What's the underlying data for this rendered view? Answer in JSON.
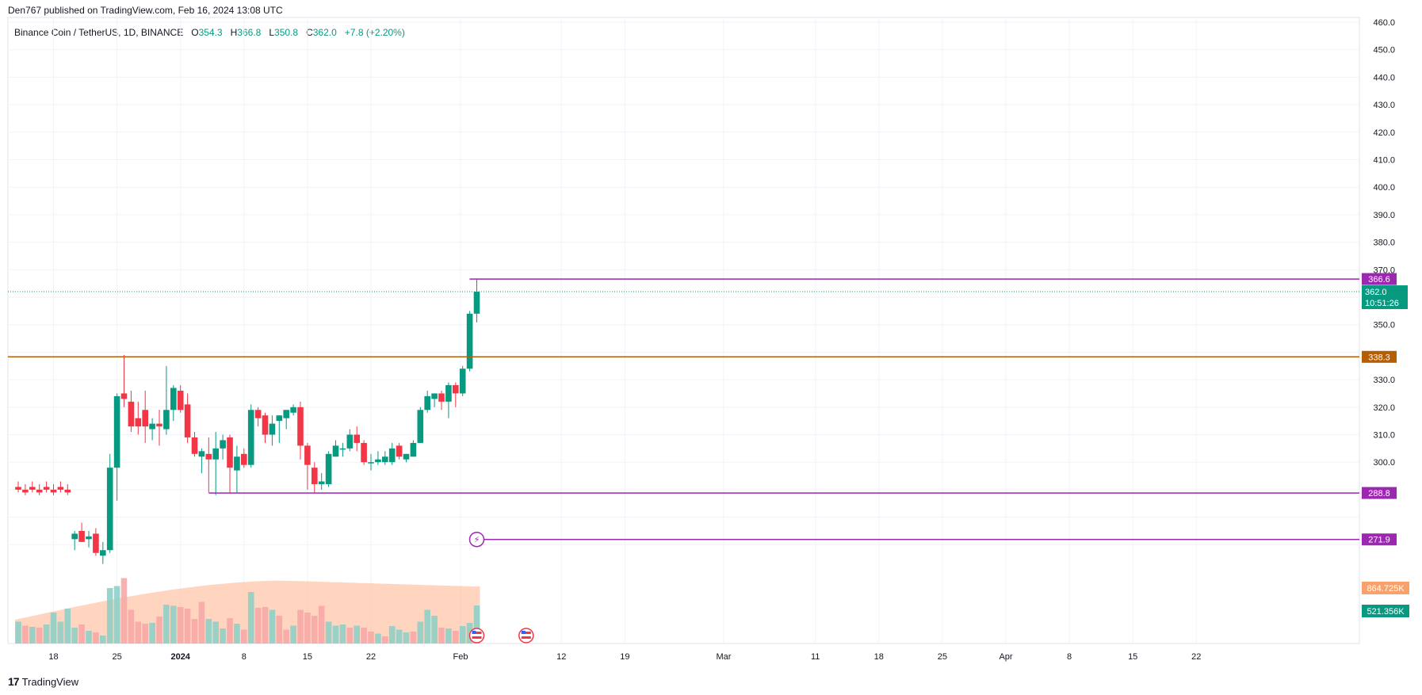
{
  "header": {
    "published": "Den767 published on TradingView.com, Feb 16, 2024 13:08 UTC"
  },
  "legend": {
    "symbol": "Binance Coin / TetherUS, 1D, BINANCE",
    "o_label": "O",
    "o_value": "354.3",
    "h_label": "H",
    "h_value": "366.8",
    "l_label": "L",
    "l_value": "350.8",
    "c_label": "C",
    "c_value": "362.0",
    "change": "+7.8 (+2.20%)"
  },
  "footer": {
    "brand": "TradingView",
    "logo_glyph": "17"
  },
  "colors": {
    "up": "#089981",
    "down": "#f23645",
    "vol_up": "#8fcfc7",
    "vol_down": "#f7a9a7",
    "vol_profile": "#ffb38a",
    "resistance": "#b45f06",
    "purple": "#9c27b0",
    "price_line": "#089981"
  },
  "chart_data": {
    "type": "candlestick",
    "title": "Binance Coin / TetherUS, 1D, BINANCE",
    "x_ticks": [
      "18",
      "25",
      "2024",
      "8",
      "15",
      "22",
      "Feb",
      "12",
      "19",
      "Mar",
      "11",
      "18",
      "25",
      "Apr",
      "8",
      "15",
      "22"
    ],
    "y_ticks": [
      "460.0",
      "450.0",
      "440.0",
      "430.0",
      "420.0",
      "410.0",
      "400.0",
      "390.0",
      "380.0",
      "370.0",
      "350.0",
      "330.0",
      "320.0",
      "310.0",
      "300.0"
    ],
    "ylim": [
      257,
      461
    ],
    "candles": [
      {
        "o": 291,
        "h": 293,
        "l": 289,
        "c": 290
      },
      {
        "o": 290,
        "h": 292,
        "l": 288,
        "c": 289
      },
      {
        "o": 291,
        "h": 293,
        "l": 289,
        "c": 290
      },
      {
        "o": 290,
        "h": 292,
        "l": 288,
        "c": 289
      },
      {
        "o": 291,
        "h": 293,
        "l": 289,
        "c": 290
      },
      {
        "o": 290,
        "h": 292,
        "l": 288,
        "c": 289
      },
      {
        "o": 291,
        "h": 293,
        "l": 289,
        "c": 290
      },
      {
        "o": 290,
        "h": 292,
        "l": 288,
        "c": 289
      },
      {
        "o": 272,
        "h": 275,
        "l": 268,
        "c": 274
      },
      {
        "o": 275,
        "h": 278,
        "l": 271,
        "c": 271
      },
      {
        "o": 272,
        "h": 275,
        "l": 269,
        "c": 273
      },
      {
        "o": 274,
        "h": 276,
        "l": 266,
        "c": 267
      },
      {
        "o": 266,
        "h": 271,
        "l": 263,
        "c": 268
      },
      {
        "o": 268,
        "h": 303,
        "l": 267,
        "c": 298
      },
      {
        "o": 298,
        "h": 325,
        "l": 286,
        "c": 324
      },
      {
        "o": 325,
        "h": 339,
        "l": 320,
        "c": 323
      },
      {
        "o": 322,
        "h": 326,
        "l": 311,
        "c": 313
      },
      {
        "o": 316,
        "h": 322,
        "l": 310,
        "c": 313
      },
      {
        "o": 319,
        "h": 326,
        "l": 307,
        "c": 313
      },
      {
        "o": 312,
        "h": 316,
        "l": 308,
        "c": 314
      },
      {
        "o": 314,
        "h": 319,
        "l": 306,
        "c": 313
      },
      {
        "o": 312,
        "h": 335,
        "l": 310,
        "c": 319
      },
      {
        "o": 319,
        "h": 328,
        "l": 315,
        "c": 327
      },
      {
        "o": 326,
        "h": 328,
        "l": 318,
        "c": 319
      },
      {
        "o": 321,
        "h": 325,
        "l": 307,
        "c": 309
      },
      {
        "o": 309,
        "h": 311,
        "l": 302,
        "c": 303
      },
      {
        "o": 302,
        "h": 305,
        "l": 296,
        "c": 304
      },
      {
        "o": 303,
        "h": 309,
        "l": 289,
        "c": 301
      },
      {
        "o": 301,
        "h": 311,
        "l": 288,
        "c": 305
      },
      {
        "o": 305,
        "h": 310,
        "l": 301,
        "c": 308
      },
      {
        "o": 309,
        "h": 310,
        "l": 289,
        "c": 298
      },
      {
        "o": 297,
        "h": 306,
        "l": 289,
        "c": 302
      },
      {
        "o": 303,
        "h": 305,
        "l": 298,
        "c": 299
      },
      {
        "o": 299,
        "h": 321,
        "l": 298,
        "c": 319
      },
      {
        "o": 319,
        "h": 320,
        "l": 313,
        "c": 316
      },
      {
        "o": 317,
        "h": 318,
        "l": 307,
        "c": 310
      },
      {
        "o": 310,
        "h": 317,
        "l": 306,
        "c": 314
      },
      {
        "o": 315,
        "h": 317,
        "l": 307,
        "c": 317
      },
      {
        "o": 316,
        "h": 319,
        "l": 312,
        "c": 319
      },
      {
        "o": 318,
        "h": 321,
        "l": 317,
        "c": 320
      },
      {
        "o": 320,
        "h": 322,
        "l": 301,
        "c": 306
      },
      {
        "o": 306,
        "h": 307,
        "l": 290,
        "c": 299
      },
      {
        "o": 298,
        "h": 300,
        "l": 289,
        "c": 292
      },
      {
        "o": 292,
        "h": 296,
        "l": 290,
        "c": 293
      },
      {
        "o": 292,
        "h": 304,
        "l": 291,
        "c": 303
      },
      {
        "o": 302,
        "h": 308,
        "l": 302,
        "c": 306
      },
      {
        "o": 305,
        "h": 307,
        "l": 302,
        "c": 305
      },
      {
        "o": 305,
        "h": 312,
        "l": 304,
        "c": 310
      },
      {
        "o": 310,
        "h": 313,
        "l": 304,
        "c": 307
      },
      {
        "o": 307,
        "h": 308,
        "l": 299,
        "c": 300
      },
      {
        "o": 300,
        "h": 303,
        "l": 297,
        "c": 300
      },
      {
        "o": 300,
        "h": 304,
        "l": 299,
        "c": 301
      },
      {
        "o": 300,
        "h": 304,
        "l": 299,
        "c": 302
      },
      {
        "o": 300,
        "h": 307,
        "l": 299,
        "c": 305
      },
      {
        "o": 306,
        "h": 307,
        "l": 301,
        "c": 302
      },
      {
        "o": 301,
        "h": 303,
        "l": 300,
        "c": 303
      },
      {
        "o": 302,
        "h": 308,
        "l": 302,
        "c": 307
      },
      {
        "o": 307,
        "h": 320,
        "l": 307,
        "c": 319
      },
      {
        "o": 319,
        "h": 326,
        "l": 318,
        "c": 324
      },
      {
        "o": 323,
        "h": 325,
        "l": 320,
        "c": 325
      },
      {
        "o": 325,
        "h": 326,
        "l": 319,
        "c": 322
      },
      {
        "o": 322,
        "h": 329,
        "l": 316,
        "c": 328
      },
      {
        "o": 328,
        "h": 329,
        "l": 320,
        "c": 325
      },
      {
        "o": 325,
        "h": 335,
        "l": 324,
        "c": 334
      },
      {
        "o": 334,
        "h": 355,
        "l": 333,
        "c": 354
      },
      {
        "o": 354,
        "h": 366.8,
        "l": 350.8,
        "c": 362
      }
    ],
    "volume": [
      {
        "v": 0.55,
        "up": true
      },
      {
        "v": 0.45,
        "up": false
      },
      {
        "v": 0.42,
        "up": true
      },
      {
        "v": 0.4,
        "up": false
      },
      {
        "v": 0.48,
        "up": true
      },
      {
        "v": 0.78,
        "up": true
      },
      {
        "v": 0.55,
        "up": true
      },
      {
        "v": 0.88,
        "up": true
      },
      {
        "v": 0.4,
        "up": true
      },
      {
        "v": 0.48,
        "up": false
      },
      {
        "v": 0.32,
        "up": true
      },
      {
        "v": 0.28,
        "up": false
      },
      {
        "v": 0.2,
        "up": true
      },
      {
        "v": 1.4,
        "up": true
      },
      {
        "v": 1.45,
        "up": true
      },
      {
        "v": 1.65,
        "up": false
      },
      {
        "v": 0.85,
        "up": false
      },
      {
        "v": 0.55,
        "up": false
      },
      {
        "v": 0.5,
        "up": false
      },
      {
        "v": 0.52,
        "up": true
      },
      {
        "v": 0.68,
        "up": false
      },
      {
        "v": 0.98,
        "up": true
      },
      {
        "v": 0.95,
        "up": true
      },
      {
        "v": 0.92,
        "up": false
      },
      {
        "v": 0.88,
        "up": false
      },
      {
        "v": 0.62,
        "up": false
      },
      {
        "v": 1.05,
        "up": false
      },
      {
        "v": 0.62,
        "up": true
      },
      {
        "v": 0.55,
        "up": true
      },
      {
        "v": 0.38,
        "up": true
      },
      {
        "v": 0.64,
        "up": false
      },
      {
        "v": 0.5,
        "up": true
      },
      {
        "v": 0.35,
        "up": false
      },
      {
        "v": 1.3,
        "up": true
      },
      {
        "v": 0.9,
        "up": false
      },
      {
        "v": 0.92,
        "up": false
      },
      {
        "v": 0.85,
        "up": true
      },
      {
        "v": 0.7,
        "up": false
      },
      {
        "v": 0.35,
        "up": false
      },
      {
        "v": 0.45,
        "up": true
      },
      {
        "v": 0.85,
        "up": false
      },
      {
        "v": 0.78,
        "up": false
      },
      {
        "v": 0.7,
        "up": false
      },
      {
        "v": 0.95,
        "up": false
      },
      {
        "v": 0.55,
        "up": true
      },
      {
        "v": 0.45,
        "up": true
      },
      {
        "v": 0.48,
        "up": true
      },
      {
        "v": 0.4,
        "up": false
      },
      {
        "v": 0.45,
        "up": true
      },
      {
        "v": 0.4,
        "up": false
      },
      {
        "v": 0.3,
        "up": false
      },
      {
        "v": 0.25,
        "up": true
      },
      {
        "v": 0.18,
        "up": false
      },
      {
        "v": 0.44,
        "up": true
      },
      {
        "v": 0.35,
        "up": true
      },
      {
        "v": 0.28,
        "up": true
      },
      {
        "v": 0.3,
        "up": false
      },
      {
        "v": 0.55,
        "up": true
      },
      {
        "v": 0.85,
        "up": true
      },
      {
        "v": 0.7,
        "up": true
      },
      {
        "v": 0.4,
        "up": false
      },
      {
        "v": 0.38,
        "up": true
      },
      {
        "v": 0.32,
        "up": false
      },
      {
        "v": 0.44,
        "up": true
      },
      {
        "v": 0.52,
        "up": true
      },
      {
        "v": 0.96,
        "up": true
      }
    ],
    "levels": [
      {
        "label": "366.6",
        "value": 366.6,
        "color": "#9c27b0",
        "kind": "ray"
      },
      {
        "label": "338.3",
        "value": 338.3,
        "color": "#b45f06",
        "kind": "line"
      },
      {
        "label": "288.8",
        "value": 288.8,
        "color": "#9c27b0",
        "kind": "ray"
      },
      {
        "label": "271.9",
        "value": 271.9,
        "color": "#9c27b0",
        "kind": "ray"
      }
    ],
    "price_tag": {
      "price": "362.0",
      "countdown": "10:51:26",
      "color": "#089981"
    },
    "volume_tags": [
      {
        "label": "864.725K",
        "color": "#f7a26c"
      },
      {
        "label": "521.356K",
        "color": "#089981"
      }
    ],
    "hidden_ticks": [
      "340.0",
      "290.0",
      "280.0",
      "270.0"
    ]
  }
}
